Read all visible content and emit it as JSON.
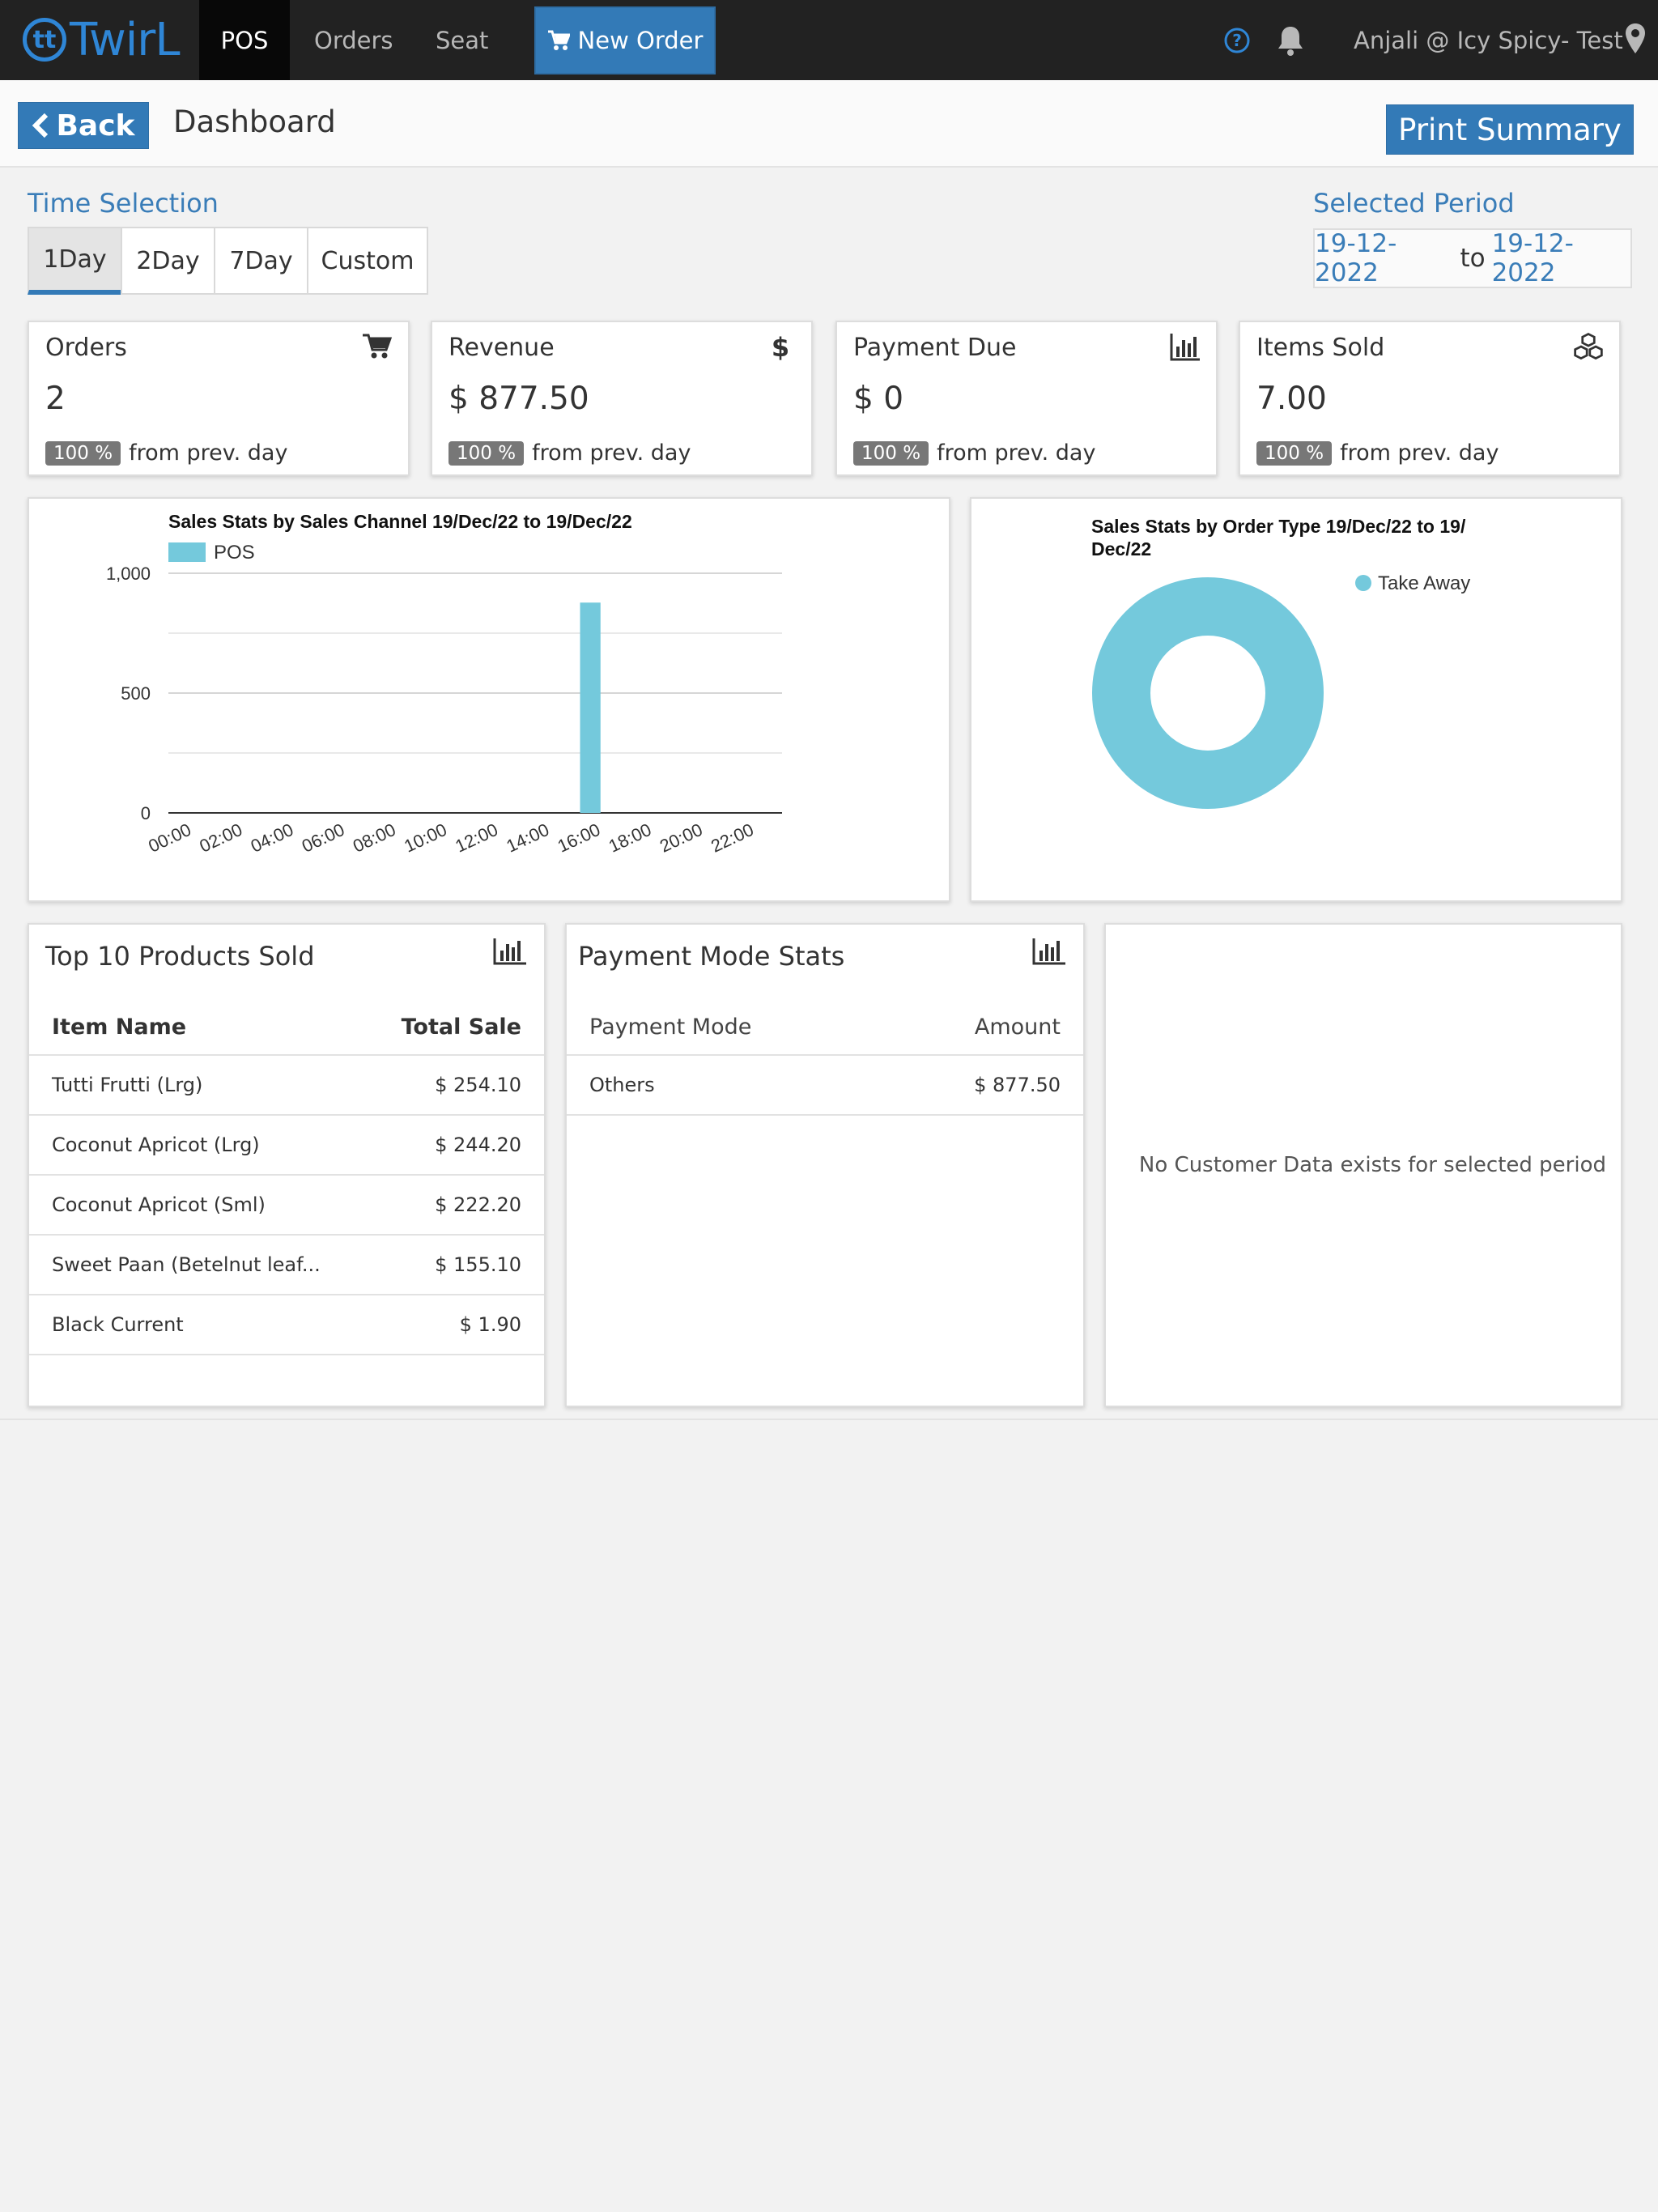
{
  "nav": {
    "brand_mark": "tt",
    "brand": "TwirL",
    "items": [
      {
        "label": "POS"
      },
      {
        "label": "Orders"
      },
      {
        "label": "Seat"
      }
    ],
    "new_order_label": "New Order",
    "user_label": "Anjali @ Icy Spicy- Test"
  },
  "header": {
    "back_label": "Back",
    "title": "Dashboard",
    "print_label": "Print Summary"
  },
  "time_selection": {
    "label": "Time Selection",
    "tabs": [
      "1Day",
      "2Day",
      "7Day",
      "Custom"
    ],
    "active_tab": "1Day"
  },
  "selected_period": {
    "label": "Selected Period",
    "from": "19-12-2022",
    "to_word": "to",
    "to": "19-12-2022"
  },
  "stats": [
    {
      "title": "Orders",
      "value": "2",
      "badge": "100 %",
      "note": "from prev. day",
      "icon": "cart-icon"
    },
    {
      "title": "Revenue",
      "value": "$ 877.50",
      "badge": "100 %",
      "note": "from prev. day",
      "icon": "dollar-icon"
    },
    {
      "title": "Payment Due",
      "value": "$ 0",
      "badge": "100 %",
      "note": "from prev. day",
      "icon": "bar-chart-icon"
    },
    {
      "title": "Items Sold",
      "value": "7.00",
      "badge": "100 %",
      "note": "from prev. day",
      "icon": "cubes-icon"
    }
  ],
  "chart_data": [
    {
      "type": "bar",
      "title": "Sales Stats by Sales Channel 19/Dec/22 to 19/Dec/22",
      "categories": [
        "00:00",
        "01:00",
        "02:00",
        "03:00",
        "04:00",
        "05:00",
        "06:00",
        "07:00",
        "08:00",
        "09:00",
        "10:00",
        "11:00",
        "12:00",
        "13:00",
        "14:00",
        "15:00",
        "16:00",
        "17:00",
        "18:00",
        "19:00",
        "20:00",
        "21:00",
        "22:00",
        "23:00"
      ],
      "tick_labels": [
        "00:00",
        "02:00",
        "04:00",
        "06:00",
        "08:00",
        "10:00",
        "12:00",
        "14:00",
        "16:00",
        "18:00",
        "20:00",
        "22:00"
      ],
      "series": [
        {
          "name": "POS",
          "values": [
            0,
            0,
            0,
            0,
            0,
            0,
            0,
            0,
            0,
            0,
            0,
            0,
            0,
            0,
            0,
            0,
            877.5,
            0,
            0,
            0,
            0,
            0,
            0,
            0
          ],
          "color": "#74c9dc"
        }
      ],
      "y_ticks": [
        "0",
        "500",
        "1,000"
      ],
      "ylim": [
        0,
        1000
      ],
      "grid": true,
      "legend": "top-left"
    },
    {
      "type": "pie",
      "title_lines": [
        "Sales Stats by Order Type 19/Dec/22 to 19/",
        "Dec/22"
      ],
      "slices": [
        {
          "label": "Take Away",
          "value": 877.5,
          "color": "#74c9dc"
        }
      ],
      "legend": "top-right"
    }
  ],
  "top_products": {
    "title": "Top 10 Products Sold",
    "headers": [
      "Item Name",
      "Total Sale"
    ],
    "rows": [
      [
        "Tutti Frutti (Lrg)",
        "$ 254.10"
      ],
      [
        "Coconut Apricot (Lrg)",
        "$ 244.20"
      ],
      [
        "Coconut Apricot (Sml)",
        "$ 222.20"
      ],
      [
        "Sweet Paan (Betelnut leaf...",
        "$ 155.10"
      ],
      [
        "Black Current",
        "$ 1.90"
      ]
    ]
  },
  "payment_modes": {
    "title": "Payment Mode Stats",
    "headers": [
      "Payment Mode",
      "Amount"
    ],
    "rows": [
      [
        "Others",
        "$ 877.50"
      ]
    ]
  },
  "customer": {
    "empty_text": "No Customer Data exists for selected period"
  }
}
